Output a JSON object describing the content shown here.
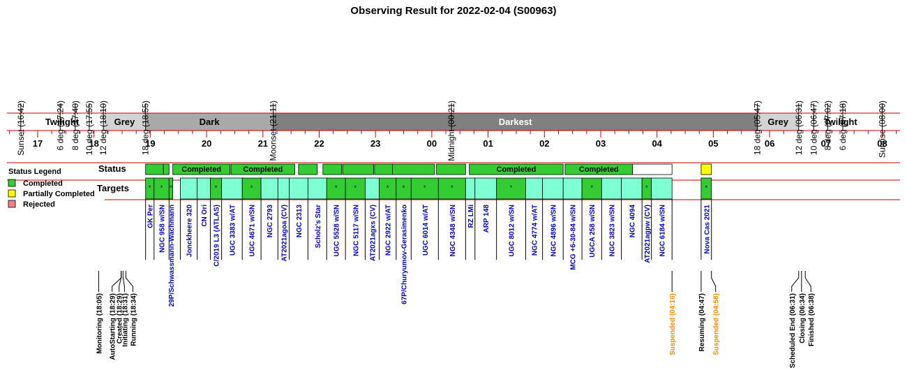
{
  "title": "Observing Result for 2022-02-04 (S00963)",
  "timeline_markers": [
    {
      "label": "Sunset (16:42)",
      "t": "16:42",
      "color": "#000000"
    },
    {
      "label": "6 deg (17:24)",
      "t": "17:24",
      "color": "#000000"
    },
    {
      "label": "8 deg (17:40)",
      "t": "17:40",
      "color": "#000000"
    },
    {
      "label": "10 deg (17:55)",
      "t": "17:55",
      "color": "#000000"
    },
    {
      "label": "12 deg (18:10)",
      "t": "18:10",
      "color": "#000000"
    },
    {
      "label": "18 deg (18:55)",
      "t": "18:55",
      "color": "#000000"
    },
    {
      "label": "Moonset (21:11)",
      "t": "21:11",
      "color": "#0000cc"
    },
    {
      "label": "Midnight (00:21)",
      "t": "00:21",
      "color": "#000000"
    },
    {
      "label": "18 deg (05:47)",
      "t": "05:47",
      "color": "#000000"
    },
    {
      "label": "12 deg (06:31)",
      "t": "06:31",
      "color": "#000000"
    },
    {
      "label": "10 deg (06:47)",
      "t": "06:47",
      "color": "#000000"
    },
    {
      "label": "8 deg (07:02)",
      "t": "07:02",
      "color": "#000000"
    },
    {
      "label": "6 deg (07:18)",
      "t": "07:18",
      "color": "#000000"
    },
    {
      "label": "Sunrise (08:00)",
      "t": "08:00",
      "color": "#000000"
    }
  ],
  "bands": [
    {
      "label": "Twilight",
      "start": "16:42",
      "end": "18:10",
      "fill": "#ffffff",
      "text_color": "#000000"
    },
    {
      "label": "Grey",
      "start": "18:10",
      "end": "18:55",
      "fill": "#d3d3d3",
      "text_color": "#000000"
    },
    {
      "label": "Dark",
      "start": "18:55",
      "end": "21:11",
      "fill": "#a9a9a9",
      "text_color": "#000000"
    },
    {
      "label": "Darkest",
      "start": "21:11",
      "end": "05:47",
      "fill": "#808080",
      "text_color": "#ffffff"
    },
    {
      "label": "Grey",
      "start": "05:47",
      "end": "06:31",
      "fill": "#d3d3d3",
      "text_color": "#000000"
    },
    {
      "label": "Twilight",
      "start": "06:31",
      "end": "08:00",
      "fill": "#ffffff",
      "text_color": "#000000"
    }
  ],
  "hours": [
    "17",
    "18",
    "19",
    "20",
    "21",
    "22",
    "23",
    "00",
    "01",
    "02",
    "03",
    "04",
    "05",
    "06",
    "07",
    "08"
  ],
  "row_labels": {
    "status": "Status",
    "targets": "Targets"
  },
  "legend": {
    "title": "Status Legend",
    "items": [
      {
        "label": "Completed",
        "color": "#33cc33"
      },
      {
        "label": "Partially Completed",
        "color": "#ffff00"
      },
      {
        "label": "Rejected",
        "color": "#f08080"
      }
    ]
  },
  "status_blocks": [
    {
      "start": "18:55",
      "end": "19:14",
      "status": "completed",
      "label": ""
    },
    {
      "start": "19:14",
      "end": "19:20",
      "status": "completed",
      "label": ""
    },
    {
      "start": "19:24",
      "end": "20:25",
      "status": "completed",
      "label": "Completed"
    },
    {
      "start": "20:26",
      "end": "21:34",
      "status": "completed",
      "label": "Completed"
    },
    {
      "start": "21:38",
      "end": "21:58",
      "status": "completed",
      "label": ""
    },
    {
      "start": "22:04",
      "end": "22:24",
      "status": "completed",
      "label": ""
    },
    {
      "start": "22:25",
      "end": "22:58",
      "status": "completed",
      "label": ""
    },
    {
      "start": "22:59",
      "end": "23:18",
      "status": "completed",
      "label": ""
    },
    {
      "start": "23:18",
      "end": "00:03",
      "status": "completed",
      "label": ""
    },
    {
      "start": "00:05",
      "end": "00:36",
      "status": "completed",
      "label": ""
    },
    {
      "start": "00:40",
      "end": "02:20",
      "status": "completed",
      "label": "Completed"
    },
    {
      "start": "02:22",
      "end": "03:34",
      "status": "completed",
      "label": "Completed"
    },
    {
      "start": "03:34",
      "end": "04:16",
      "status": "empty",
      "label": ""
    },
    {
      "start": "04:47",
      "end": "04:58",
      "status": "partial",
      "label": ""
    }
  ],
  "targets": [
    {
      "name": "GK Per",
      "start": "18:55",
      "end": "19:04",
      "kind": "green",
      "mark": "*"
    },
    {
      "name": "NGC 958 w/SN",
      "start": "19:04",
      "end": "19:20",
      "kind": "green",
      "mark": "*"
    },
    {
      "name": "29P/Schwassmann-Wachmann",
      "start": "19:20",
      "end": "19:24",
      "kind": "green",
      "mark": "*"
    },
    {
      "name": "Jonckheere 320",
      "start": "19:32",
      "end": "19:50",
      "kind": "cyan",
      "mark": ""
    },
    {
      "name": "CN Ori",
      "start": "19:50",
      "end": "20:04",
      "kind": "cyan",
      "mark": ""
    },
    {
      "name": "C/2019 L3 (ATLAS)",
      "start": "20:04",
      "end": "20:16",
      "kind": "green",
      "mark": "*"
    },
    {
      "name": "UGC 3383 w/AT",
      "start": "20:16",
      "end": "20:38",
      "kind": "cyan",
      "mark": ""
    },
    {
      "name": "UGC 4671 w/SN",
      "start": "20:38",
      "end": "20:58",
      "kind": "green",
      "mark": "*"
    },
    {
      "name": "NGC 2793",
      "start": "20:58",
      "end": "21:16",
      "kind": "cyan",
      "mark": ""
    },
    {
      "name": "AT2021agoa (CV)",
      "start": "21:16",
      "end": "21:28",
      "kind": "cyan",
      "mark": ""
    },
    {
      "name": "NGC 2313",
      "start": "21:28",
      "end": "21:48",
      "kind": "cyan",
      "mark": ""
    },
    {
      "name": "Scholz's Star",
      "start": "21:48",
      "end": "22:08",
      "kind": "cyan",
      "mark": ""
    },
    {
      "name": "UGC 5528 w/SN",
      "start": "22:08",
      "end": "22:28",
      "kind": "green",
      "mark": "*"
    },
    {
      "name": "NGC 5117 w/SN",
      "start": "22:28",
      "end": "22:49",
      "kind": "green",
      "mark": "*"
    },
    {
      "name": "AT2021agxs (CV)",
      "start": "22:49",
      "end": "23:04",
      "kind": "cyan",
      "mark": ""
    },
    {
      "name": "NGC 2922 w/AT",
      "start": "23:04",
      "end": "23:22",
      "kind": "green",
      "mark": "*"
    },
    {
      "name": "67P/Churyumov-Gerasimenko",
      "start": "23:22",
      "end": "23:38",
      "kind": "green",
      "mark": "*"
    },
    {
      "name": "UGC 6014 w/AT",
      "start": "23:38",
      "end": "00:07",
      "kind": "green",
      "mark": "*"
    },
    {
      "name": "NGC 4348 w/SN",
      "start": "00:07",
      "end": "00:36",
      "kind": "green",
      "mark": "*"
    },
    {
      "name": "RZ LMi",
      "start": "00:36",
      "end": "00:46",
      "kind": "cyan",
      "mark": ""
    },
    {
      "name": "ARP 148",
      "start": "00:46",
      "end": "01:09",
      "kind": "cyan",
      "mark": ""
    },
    {
      "name": "UGC 8012 w/SN",
      "start": "01:09",
      "end": "01:40",
      "kind": "green",
      "mark": "*"
    },
    {
      "name": "NGC 4774 w/AT",
      "start": "01:40",
      "end": "01:58",
      "kind": "cyan",
      "mark": ""
    },
    {
      "name": "NGC 4896 w/SN",
      "start": "01:58",
      "end": "02:20",
      "kind": "cyan",
      "mark": ""
    },
    {
      "name": "MCG +6-30-84 w/SN",
      "start": "02:20",
      "end": "02:40",
      "kind": "cyan",
      "mark": ""
    },
    {
      "name": "UGCA 258 w/SN",
      "start": "02:40",
      "end": "03:01",
      "kind": "green",
      "mark": "*"
    },
    {
      "name": "NGC 3823 w/SN",
      "start": "03:01",
      "end": "03:22",
      "kind": "cyan",
      "mark": ""
    },
    {
      "name": "NGC 4094",
      "start": "03:22",
      "end": "03:44",
      "kind": "cyan",
      "mark": ""
    },
    {
      "name": "AT2021agpw (CV)",
      "start": "03:44",
      "end": "03:54",
      "kind": "green",
      "mark": "*"
    },
    {
      "name": "NGC 6184 w/SN",
      "start": "03:54",
      "end": "04:16",
      "kind": "cyan",
      "mark": ""
    },
    {
      "name": "Nova Cas 2021",
      "start": "04:47",
      "end": "04:58",
      "kind": "green",
      "mark": "*"
    }
  ],
  "events": [
    {
      "label": "Monitoring (18:05)",
      "t": "18:05",
      "color": "#000000"
    },
    {
      "label": "AutoStarting (18:29)",
      "t": "18:29",
      "color": "#000000"
    },
    {
      "label": "Created (18:29)",
      "t": "18:29",
      "color": "#000000"
    },
    {
      "label": "Initiating (18:31)",
      "t": "18:31",
      "color": "#000000"
    },
    {
      "label": "Running (18:34)",
      "t": "18:34",
      "color": "#000000"
    },
    {
      "label": "Suspended (04:16)",
      "t": "04:16",
      "color": "#ff8c00"
    },
    {
      "label": "Resuming (04:47)",
      "t": "04:47",
      "color": "#000000"
    },
    {
      "label": "Suspended (04:58)",
      "t": "04:58",
      "color": "#ff8c00"
    },
    {
      "label": "Scheduled End (06:31)",
      "t": "06:31",
      "color": "#000000"
    },
    {
      "label": "Closing (06:34)",
      "t": "06:34",
      "color": "#000000"
    },
    {
      "label": "Finished (06:38)",
      "t": "06:38",
      "color": "#000000"
    }
  ],
  "chart_data": {
    "type": "gantt-timeline",
    "title": "Observing Result for 2022-02-04 (S00963)",
    "x_axis": "hour of night (local)",
    "x_range": [
      "16:42",
      "08:00"
    ],
    "ticks": [
      "17",
      "18",
      "19",
      "20",
      "21",
      "22",
      "23",
      "00",
      "01",
      "02",
      "03",
      "04",
      "05",
      "06",
      "07",
      "08"
    ],
    "colors": {
      "completed": "#33cc33",
      "partial": "#ffff00",
      "rejected": "#f08080",
      "cyan": "#7fffd4",
      "accent_red": "#cc0000",
      "target_text": "#0000cc"
    }
  }
}
